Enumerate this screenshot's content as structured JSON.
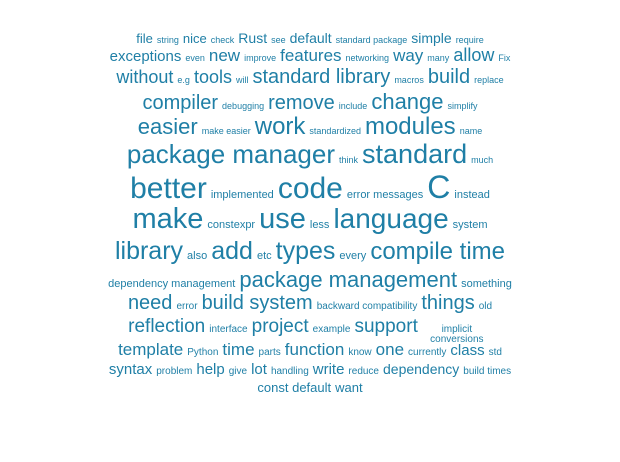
{
  "accent_color": "#1f7fa6",
  "lines": [
    [
      {
        "t": "file",
        "s": 13
      },
      {
        "t": "string",
        "s": 9
      },
      {
        "t": "nice",
        "s": 13
      },
      {
        "t": "check",
        "s": 9
      },
      {
        "t": "Rust",
        "s": 14
      },
      {
        "t": "see",
        "s": 9
      },
      {
        "t": "default",
        "s": 14
      },
      {
        "t": "standard package",
        "s": 9
      },
      {
        "t": "simple",
        "s": 14
      },
      {
        "t": "require",
        "s": 9
      }
    ],
    [
      {
        "t": "exceptions",
        "s": 15
      },
      {
        "t": "even",
        "s": 9
      },
      {
        "t": "new",
        "s": 17
      },
      {
        "t": "improve",
        "s": 9
      },
      {
        "t": "features",
        "s": 17
      },
      {
        "t": "networking",
        "s": 9
      },
      {
        "t": "way",
        "s": 17
      },
      {
        "t": "many",
        "s": 9
      },
      {
        "t": "allow",
        "s": 18
      },
      {
        "t": "Fix",
        "s": 9
      }
    ],
    [
      {
        "t": "without",
        "s": 18
      },
      {
        "t": "e.g",
        "s": 9
      },
      {
        "t": "tools",
        "s": 18
      },
      {
        "t": "will",
        "s": 9
      },
      {
        "t": "standard library",
        "s": 20
      },
      {
        "t": "macros",
        "s": 9
      },
      {
        "t": "build",
        "s": 20
      },
      {
        "t": "replace",
        "s": 9
      }
    ],
    [
      {
        "t": "compiler",
        "s": 20
      },
      {
        "t": "debugging",
        "s": 9
      },
      {
        "t": "remove",
        "s": 20
      },
      {
        "t": "include",
        "s": 9
      },
      {
        "t": "change",
        "s": 22
      },
      {
        "t": "simplify",
        "s": 9
      }
    ],
    [
      {
        "t": "easier",
        "s": 22
      },
      {
        "t": "make easier",
        "s": 9
      },
      {
        "t": "work",
        "s": 24
      },
      {
        "t": "standardized",
        "s": 9
      },
      {
        "t": "modules",
        "s": 24
      },
      {
        "t": "name",
        "s": 9
      }
    ],
    [
      {
        "t": "package manager",
        "s": 26
      },
      {
        "t": "think",
        "s": 9
      },
      {
        "t": "standard",
        "s": 27
      },
      {
        "t": "much",
        "s": 9
      }
    ],
    [
      {
        "t": "better",
        "s": 30
      },
      {
        "t": "implemented",
        "s": 11
      },
      {
        "t": "code",
        "s": 30
      },
      {
        "t": "error messages",
        "s": 11
      },
      {
        "t": "C",
        "s": 32
      },
      {
        "t": "instead",
        "s": 11
      }
    ],
    [
      {
        "t": "make",
        "s": 29
      },
      {
        "t": "constexpr",
        "s": 11
      },
      {
        "t": "use",
        "s": 29
      },
      {
        "t": "less",
        "s": 11
      },
      {
        "t": "language",
        "s": 28
      },
      {
        "t": "system",
        "s": 11
      }
    ],
    [
      {
        "t": "library",
        "s": 25
      },
      {
        "t": "also",
        "s": 11
      },
      {
        "t": "add",
        "s": 25
      },
      {
        "t": "etc",
        "s": 11
      },
      {
        "t": "types",
        "s": 25
      },
      {
        "t": "every",
        "s": 11
      },
      {
        "t": "compile time",
        "s": 24
      }
    ],
    [
      {
        "t": "dependency management",
        "s": 11
      },
      {
        "t": "package management",
        "s": 22
      },
      {
        "t": "something",
        "s": 11
      }
    ],
    [
      {
        "t": "need",
        "s": 20
      },
      {
        "t": "error",
        "s": 10
      },
      {
        "t": "build system",
        "s": 20
      },
      {
        "t": "backward compatibility",
        "s": 10
      },
      {
        "t": "things",
        "s": 20
      },
      {
        "t": "old",
        "s": 10
      }
    ],
    [
      {
        "t": "reflection",
        "s": 19
      },
      {
        "t": "interface",
        "s": 10
      },
      {
        "t": "project",
        "s": 19
      },
      {
        "t": "example",
        "s": 10
      },
      {
        "t": "support",
        "s": 19
      },
      {
        "t": "implicit conversions",
        "s": 10,
        "stack": true
      }
    ],
    [
      {
        "t": "template",
        "s": 17
      },
      {
        "t": "Python",
        "s": 10
      },
      {
        "t": "time",
        "s": 17
      },
      {
        "t": "parts",
        "s": 10
      },
      {
        "t": "function",
        "s": 17
      },
      {
        "t": "know",
        "s": 10
      },
      {
        "t": "one",
        "s": 17
      },
      {
        "t": "currently",
        "s": 10
      },
      {
        "t": "class",
        "s": 15
      },
      {
        "t": "std",
        "s": 10
      }
    ],
    [
      {
        "t": "syntax",
        "s": 15
      },
      {
        "t": "problem",
        "s": 10
      },
      {
        "t": "help",
        "s": 15
      },
      {
        "t": "give",
        "s": 10
      },
      {
        "t": "lot",
        "s": 15
      },
      {
        "t": "handling",
        "s": 10
      },
      {
        "t": "write",
        "s": 15
      },
      {
        "t": "reduce",
        "s": 10
      },
      {
        "t": "dependency",
        "s": 14
      },
      {
        "t": "build times",
        "s": 10
      }
    ],
    [
      {
        "t": "const default",
        "s": 13
      },
      {
        "t": "want",
        "s": 13
      }
    ]
  ]
}
